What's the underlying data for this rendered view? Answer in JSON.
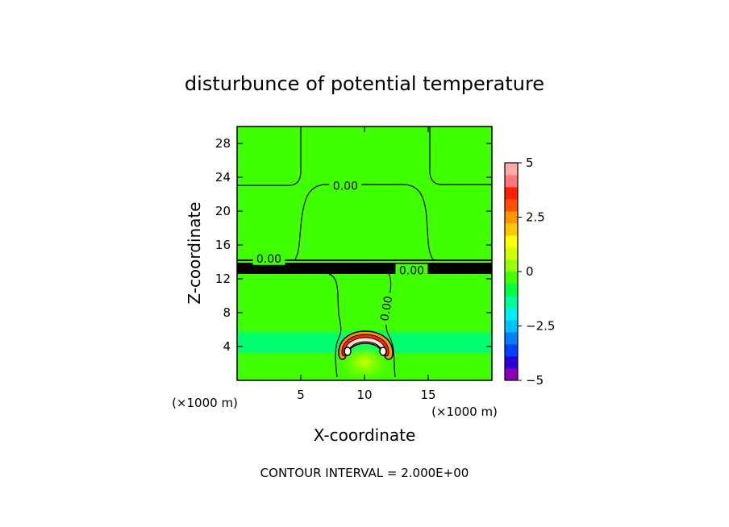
{
  "chart_data": {
    "type": "heatmap",
    "title": "disturbunce of potential temperature",
    "xlabel": "X-coordinate",
    "ylabel": "Z-coordinate",
    "x_unit_label": "(×1000 m)",
    "y_unit_label": "(×1000 m)",
    "xlim": [
      0,
      20
    ],
    "ylim": [
      0,
      30
    ],
    "x_ticks": [
      5,
      10,
      15
    ],
    "y_ticks": [
      4,
      8,
      12,
      16,
      20,
      24,
      28
    ],
    "footer": "CONTOUR INTERVAL = 2.000E+00",
    "contour_labels": [
      {
        "text": "0.00",
        "x": 8.5,
        "z": 23.0,
        "rotation": 0
      },
      {
        "text": "0.00",
        "x": 2.5,
        "z": 14.4,
        "rotation": 0
      },
      {
        "text": "0.00",
        "x": 13.7,
        "z": 13.0,
        "rotation": 0
      },
      {
        "text": "0.00",
        "x": 11.7,
        "z": 8.5,
        "rotation": -80
      }
    ],
    "colorbar": {
      "min": -5,
      "max": 5,
      "tick_values": [
        5,
        2.5,
        0,
        -2.5,
        -5
      ],
      "tick_labels": [
        "5",
        "2.5",
        "0",
        "−2.5",
        "−5"
      ],
      "colors": [
        "#8a00b4",
        "#2b00d6",
        "#0040ff",
        "#0080ff",
        "#00c0ff",
        "#00f0f0",
        "#00ff96",
        "#00ff40",
        "#40ff00",
        "#96ff00",
        "#d2ff00",
        "#ffff00",
        "#ffc800",
        "#ff9600",
        "#ff5000",
        "#ff2000",
        "#ff7878",
        "#ffaaaa"
      ]
    }
  }
}
